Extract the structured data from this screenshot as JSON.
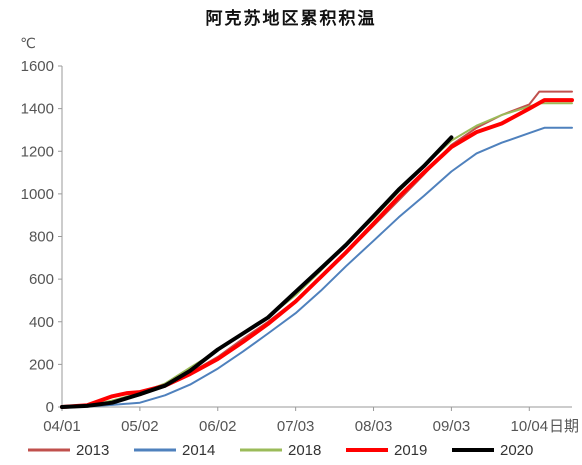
{
  "chart_data": {
    "type": "line",
    "title": "阿克苏地区累积积温",
    "ylabel": "℃",
    "xlabel": "日期",
    "ylim": [
      0,
      1600
    ],
    "yticks": [
      0,
      200,
      400,
      600,
      800,
      1000,
      1200,
      1400,
      1600
    ],
    "xlim": [
      "04/01",
      "10/21"
    ],
    "xticks": [
      "04/01",
      "05/02",
      "06/02",
      "07/03",
      "08/03",
      "09/03",
      "10/04"
    ],
    "grid": false,
    "legend_position": "bottom",
    "series": [
      {
        "name": "2013",
        "color": "#c0504d",
        "points": [
          [
            "04/01",
            0
          ],
          [
            "04/11",
            5
          ],
          [
            "04/21",
            25
          ],
          [
            "05/02",
            55
          ],
          [
            "05/12",
            100
          ],
          [
            "05/22",
            160
          ],
          [
            "06/02",
            235
          ],
          [
            "06/12",
            320
          ],
          [
            "06/22",
            400
          ],
          [
            "07/03",
            500
          ],
          [
            "07/13",
            605
          ],
          [
            "07/23",
            720
          ],
          [
            "08/03",
            850
          ],
          [
            "08/13",
            970
          ],
          [
            "08/23",
            1090
          ],
          [
            "09/03",
            1230
          ],
          [
            "09/13",
            1310
          ],
          [
            "09/23",
            1370
          ],
          [
            "10/04",
            1420
          ],
          [
            "10/08",
            1480
          ],
          [
            "10/21",
            1480
          ]
        ]
      },
      {
        "name": "2014",
        "color": "#4f81bd",
        "points": [
          [
            "04/01",
            0
          ],
          [
            "04/11",
            3
          ],
          [
            "04/21",
            10
          ],
          [
            "05/02",
            20
          ],
          [
            "05/12",
            55
          ],
          [
            "05/22",
            105
          ],
          [
            "06/02",
            180
          ],
          [
            "06/12",
            260
          ],
          [
            "06/22",
            345
          ],
          [
            "07/03",
            440
          ],
          [
            "07/13",
            545
          ],
          [
            "07/23",
            660
          ],
          [
            "08/03",
            780
          ],
          [
            "08/13",
            890
          ],
          [
            "08/23",
            990
          ],
          [
            "09/03",
            1105
          ],
          [
            "09/13",
            1190
          ],
          [
            "09/23",
            1240
          ],
          [
            "10/04",
            1285
          ],
          [
            "10/10",
            1310
          ],
          [
            "10/21",
            1310
          ]
        ]
      },
      {
        "name": "2018",
        "color": "#9bbb59",
        "points": [
          [
            "04/01",
            0
          ],
          [
            "04/11",
            5
          ],
          [
            "04/21",
            30
          ],
          [
            "05/02",
            65
          ],
          [
            "05/12",
            110
          ],
          [
            "05/22",
            185
          ],
          [
            "06/02",
            265
          ],
          [
            "06/12",
            345
          ],
          [
            "06/22",
            420
          ],
          [
            "07/03",
            525
          ],
          [
            "07/13",
            640
          ],
          [
            "07/23",
            760
          ],
          [
            "08/03",
            885
          ],
          [
            "08/13",
            1010
          ],
          [
            "08/23",
            1130
          ],
          [
            "09/03",
            1250
          ],
          [
            "09/13",
            1320
          ],
          [
            "09/23",
            1370
          ],
          [
            "10/04",
            1410
          ],
          [
            "10/08",
            1425
          ],
          [
            "10/21",
            1425
          ]
        ]
      },
      {
        "name": "2019",
        "color": "#ff0000",
        "points": [
          [
            "04/01",
            0
          ],
          [
            "04/11",
            8
          ],
          [
            "04/21",
            50
          ],
          [
            "04/27",
            65
          ],
          [
            "05/02",
            70
          ],
          [
            "05/12",
            100
          ],
          [
            "05/22",
            155
          ],
          [
            "06/02",
            225
          ],
          [
            "06/12",
            305
          ],
          [
            "06/22",
            390
          ],
          [
            "07/03",
            495
          ],
          [
            "07/13",
            610
          ],
          [
            "07/23",
            725
          ],
          [
            "08/03",
            860
          ],
          [
            "08/13",
            985
          ],
          [
            "08/23",
            1100
          ],
          [
            "09/03",
            1220
          ],
          [
            "09/13",
            1290
          ],
          [
            "09/23",
            1330
          ],
          [
            "10/04",
            1400
          ],
          [
            "10/10",
            1440
          ],
          [
            "10/21",
            1440
          ]
        ]
      },
      {
        "name": "2020",
        "color": "#000000",
        "points": [
          [
            "04/01",
            0
          ],
          [
            "04/11",
            5
          ],
          [
            "04/21",
            20
          ],
          [
            "05/02",
            60
          ],
          [
            "05/12",
            100
          ],
          [
            "05/22",
            170
          ],
          [
            "06/02",
            270
          ],
          [
            "06/12",
            345
          ],
          [
            "06/22",
            420
          ],
          [
            "07/03",
            540
          ],
          [
            "07/13",
            650
          ],
          [
            "07/23",
            760
          ],
          [
            "08/03",
            895
          ],
          [
            "08/13",
            1020
          ],
          [
            "08/23",
            1130
          ],
          [
            "09/03",
            1265
          ]
        ]
      }
    ]
  }
}
